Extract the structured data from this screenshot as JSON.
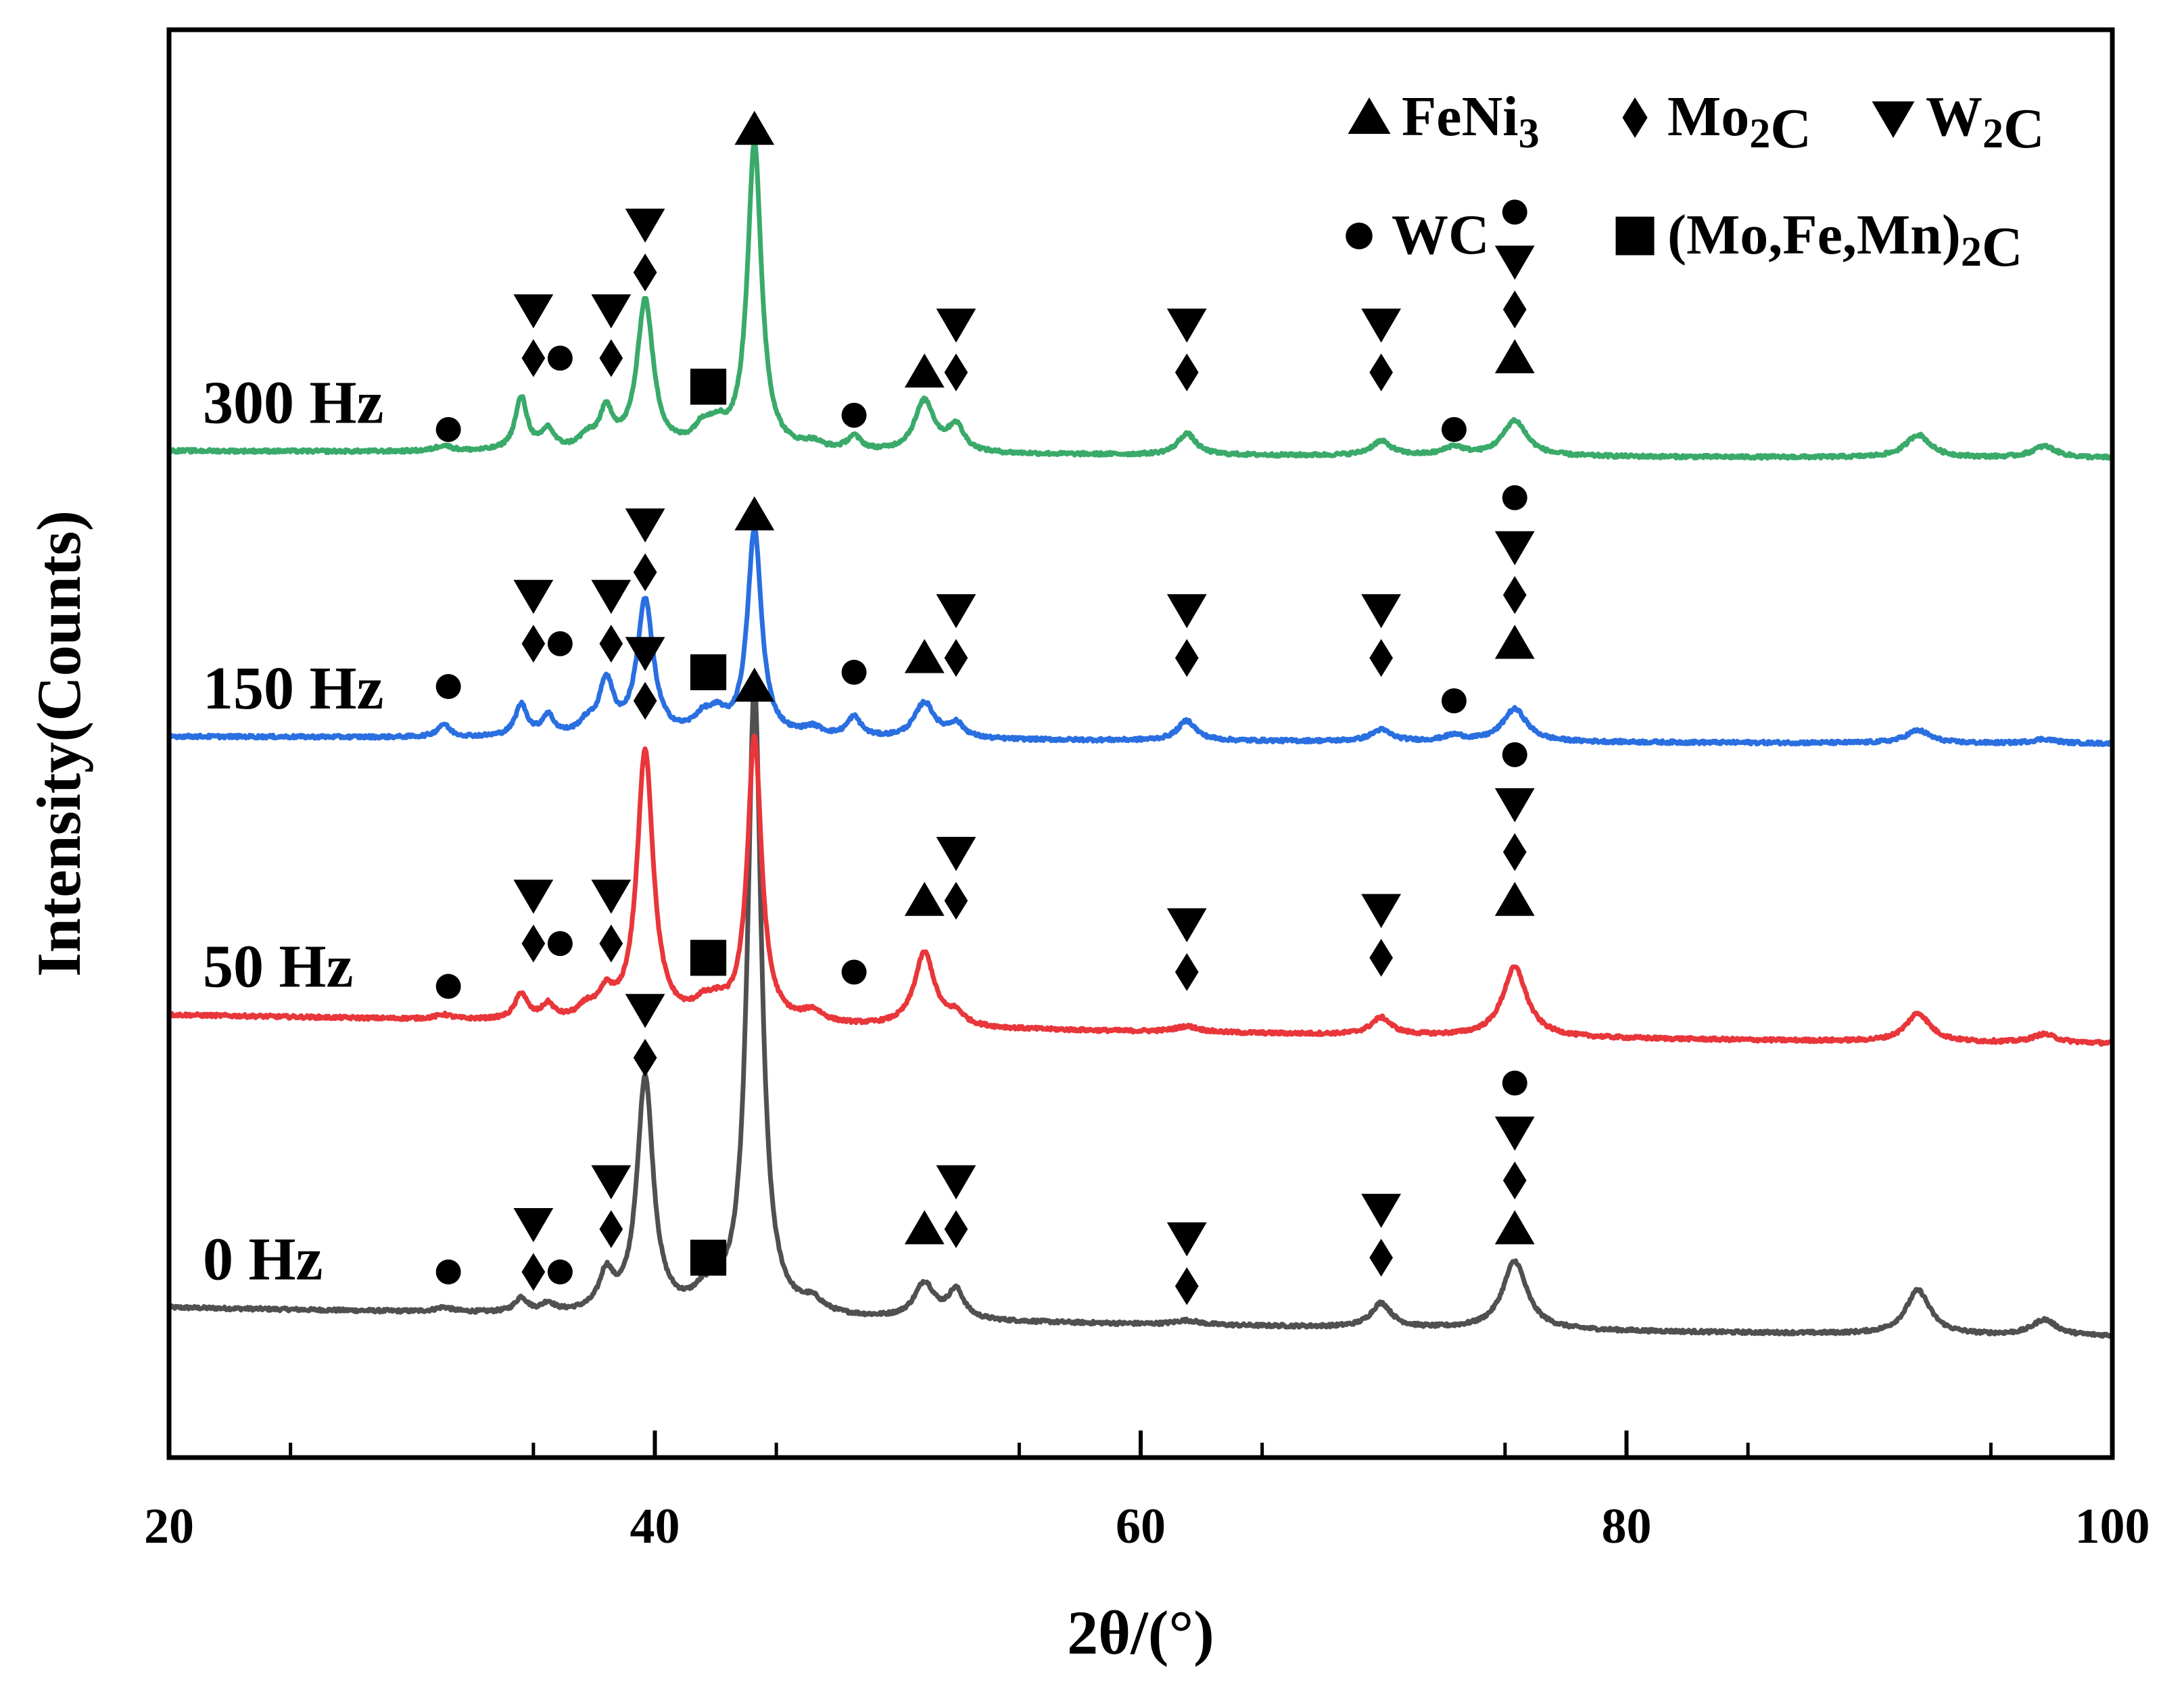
{
  "chart_data": {
    "type": "line",
    "title": "",
    "xlabel": "2θ/(°)",
    "ylabel": "Intensity(Counts)",
    "xlim": [
      20,
      100
    ],
    "x_ticks": [
      20,
      40,
      60,
      80,
      100
    ],
    "x_tick_labels": [
      "20",
      "40",
      "60",
      "80",
      "100"
    ],
    "ylim": [
      0,
      100
    ],
    "grid": false,
    "legend": {
      "position": "top-right",
      "entries": [
        {
          "symbol": "triangle-up",
          "parts": [
            {
              "t": "FeNi"
            },
            {
              "t": "3",
              "sub": true
            }
          ]
        },
        {
          "symbol": "diamond",
          "parts": [
            {
              "t": "Mo"
            },
            {
              "t": "2",
              "sub": true
            },
            {
              "t": "C"
            }
          ]
        },
        {
          "symbol": "triangle-down",
          "parts": [
            {
              "t": "W"
            },
            {
              "t": "2",
              "sub": true
            },
            {
              "t": "C"
            }
          ]
        },
        {
          "symbol": "circle",
          "parts": [
            {
              "t": "WC"
            }
          ]
        },
        {
          "symbol": "square",
          "parts": [
            {
              "t": "(Mo,Fe,Mn)"
            },
            {
              "t": "2",
              "sub": true
            },
            {
              "t": "C"
            }
          ]
        }
      ]
    },
    "series": [
      {
        "name": "0 Hz",
        "color": "#505050",
        "baseline": [
          8.5,
          10.5
        ],
        "peaks": [
          [
            31.3,
            0.3,
            0.4
          ],
          [
            34.5,
            1.0,
            0.3
          ],
          [
            35.6,
            0.6,
            0.3
          ],
          [
            38.0,
            2.5,
            0.35
          ],
          [
            39.6,
            16.5,
            0.4
          ],
          [
            42.0,
            1.0,
            0.5
          ],
          [
            42.6,
            0.8,
            0.4
          ],
          [
            44.1,
            44.0,
            0.35
          ],
          [
            46.5,
            0.8,
            0.5
          ],
          [
            51.1,
            2.5,
            0.5
          ],
          [
            52.4,
            2.0,
            0.4
          ],
          [
            61.9,
            0.3,
            0.6
          ],
          [
            69.9,
            1.7,
            0.5
          ],
          [
            75.4,
            4.8,
            0.6
          ],
          [
            92.0,
            3.1,
            0.6
          ],
          [
            97.2,
            1.1,
            0.6
          ]
        ],
        "markers": [
          {
            "x": 31.5,
            "y": 13,
            "stack": [
              "circle"
            ]
          },
          {
            "x": 35.0,
            "y": 13,
            "stack": [
              "diamond",
              "triangle-down"
            ]
          },
          {
            "x": 36.1,
            "y": 13,
            "stack": [
              "circle"
            ]
          },
          {
            "x": 38.2,
            "y": 16,
            "stack": [
              "diamond",
              "triangle-down"
            ]
          },
          {
            "x": 39.6,
            "y": 28,
            "stack": [
              "diamond",
              "triangle-down"
            ]
          },
          {
            "x": 42.2,
            "y": 14,
            "stack": [
              "square"
            ]
          },
          {
            "x": 51.1,
            "y": 16,
            "stack": [
              "triangle-up"
            ]
          },
          {
            "x": 52.4,
            "y": 16,
            "stack": [
              "diamond",
              "triangle-down"
            ]
          },
          {
            "x": 61.9,
            "y": 12,
            "stack": [
              "diamond",
              "triangle-down"
            ]
          },
          {
            "x": 69.9,
            "y": 14,
            "stack": [
              "diamond",
              "triangle-down"
            ]
          },
          {
            "x": 75.4,
            "y": 16,
            "stack": [
              "triangle-up",
              "diamond",
              "triangle-down",
              "circle"
            ]
          }
        ]
      },
      {
        "name": "50 Hz",
        "color": "#e8363a",
        "baseline": [
          29.0,
          31.0
        ],
        "peaks": [
          [
            31.3,
            0.3,
            0.4
          ],
          [
            34.5,
            1.8,
            0.3
          ],
          [
            35.6,
            1.0,
            0.3
          ],
          [
            37.2,
            0.8,
            0.4
          ],
          [
            38.0,
            1.6,
            0.35
          ],
          [
            39.6,
            19.0,
            0.4
          ],
          [
            42.0,
            1.0,
            0.5
          ],
          [
            42.6,
            0.8,
            0.4
          ],
          [
            44.1,
            20.0,
            0.35
          ],
          [
            46.5,
            0.8,
            0.5
          ],
          [
            51.1,
            5.2,
            0.5
          ],
          [
            52.4,
            0.8,
            0.4
          ],
          [
            61.9,
            0.4,
            0.6
          ],
          [
            69.9,
            1.2,
            0.5
          ],
          [
            75.4,
            4.9,
            0.6
          ],
          [
            92.0,
            2.0,
            0.6
          ],
          [
            97.2,
            0.6,
            0.6
          ]
        ],
        "markers": [
          {
            "x": 31.5,
            "y": 33,
            "stack": [
              "circle"
            ]
          },
          {
            "x": 35.0,
            "y": 36,
            "stack": [
              "diamond",
              "triangle-down"
            ]
          },
          {
            "x": 36.1,
            "y": 36,
            "stack": [
              "circle"
            ]
          },
          {
            "x": 38.2,
            "y": 36,
            "stack": [
              "diamond",
              "triangle-down"
            ]
          },
          {
            "x": 39.6,
            "y": 53,
            "stack": [
              "diamond",
              "triangle-down"
            ]
          },
          {
            "x": 42.2,
            "y": 35,
            "stack": [
              "square"
            ]
          },
          {
            "x": 44.1,
            "y": 54,
            "stack": [
              "triangle-up"
            ]
          },
          {
            "x": 48.2,
            "y": 34,
            "stack": [
              "circle"
            ]
          },
          {
            "x": 51.1,
            "y": 39,
            "stack": [
              "triangle-up"
            ]
          },
          {
            "x": 52.4,
            "y": 39,
            "stack": [
              "diamond",
              "triangle-down"
            ]
          },
          {
            "x": 61.9,
            "y": 34,
            "stack": [
              "diamond",
              "triangle-down"
            ]
          },
          {
            "x": 69.9,
            "y": 35,
            "stack": [
              "diamond",
              "triangle-down"
            ]
          },
          {
            "x": 75.4,
            "y": 39,
            "stack": [
              "triangle-up",
              "diamond",
              "triangle-down",
              "circle"
            ]
          }
        ]
      },
      {
        "name": "150 Hz",
        "color": "#2a6fe0",
        "baseline": [
          50.0,
          50.5
        ],
        "peaks": [
          [
            31.3,
            0.9,
            0.3
          ],
          [
            34.5,
            2.2,
            0.3
          ],
          [
            35.6,
            1.4,
            0.3
          ],
          [
            37.2,
            0.8,
            0.4
          ],
          [
            38.0,
            3.7,
            0.35
          ],
          [
            39.6,
            9.5,
            0.4
          ],
          [
            42.0,
            1.2,
            0.5
          ],
          [
            42.6,
            1.1,
            0.4
          ],
          [
            44.1,
            14.5,
            0.35
          ],
          [
            46.5,
            0.6,
            0.5
          ],
          [
            48.2,
            1.4,
            0.35
          ],
          [
            51.1,
            2.5,
            0.5
          ],
          [
            52.4,
            1.0,
            0.4
          ],
          [
            61.9,
            1.4,
            0.45
          ],
          [
            69.9,
            0.8,
            0.5
          ],
          [
            72.9,
            0.4,
            0.5
          ],
          [
            75.4,
            2.3,
            0.6
          ],
          [
            92.0,
            0.9,
            0.6
          ],
          [
            97.2,
            0.3,
            0.6
          ]
        ],
        "markers": [
          {
            "x": 31.5,
            "y": 54,
            "stack": [
              "circle"
            ]
          },
          {
            "x": 35.0,
            "y": 57,
            "stack": [
              "diamond",
              "triangle-down"
            ]
          },
          {
            "x": 36.1,
            "y": 57,
            "stack": [
              "circle"
            ]
          },
          {
            "x": 38.2,
            "y": 57,
            "stack": [
              "diamond",
              "triangle-down"
            ]
          },
          {
            "x": 39.6,
            "y": 62,
            "stack": [
              "diamond",
              "triangle-down"
            ]
          },
          {
            "x": 42.2,
            "y": 55,
            "stack": [
              "square"
            ]
          },
          {
            "x": 44.1,
            "y": 66,
            "stack": [
              "triangle-up"
            ]
          },
          {
            "x": 48.2,
            "y": 55,
            "stack": [
              "circle"
            ]
          },
          {
            "x": 51.1,
            "y": 56,
            "stack": [
              "triangle-up"
            ]
          },
          {
            "x": 52.4,
            "y": 56,
            "stack": [
              "diamond",
              "triangle-down"
            ]
          },
          {
            "x": 61.9,
            "y": 56,
            "stack": [
              "diamond",
              "triangle-down"
            ]
          },
          {
            "x": 69.9,
            "y": 56,
            "stack": [
              "diamond",
              "triangle-down"
            ]
          },
          {
            "x": 72.9,
            "y": 53,
            "stack": [
              "circle"
            ]
          },
          {
            "x": 75.4,
            "y": 57,
            "stack": [
              "triangle-up",
              "diamond",
              "triangle-down",
              "circle"
            ]
          }
        ]
      },
      {
        "name": "300 Hz",
        "color": "#3aaa6a",
        "baseline": [
          70.0,
          70.5
        ],
        "peaks": [
          [
            31.3,
            0.4,
            0.4
          ],
          [
            34.5,
            3.7,
            0.3
          ],
          [
            35.6,
            1.4,
            0.3
          ],
          [
            37.2,
            0.8,
            0.4
          ],
          [
            38.0,
            2.6,
            0.35
          ],
          [
            39.6,
            10.5,
            0.4
          ],
          [
            42.0,
            1.4,
            0.5
          ],
          [
            42.6,
            1.1,
            0.4
          ],
          [
            44.1,
            21.5,
            0.35
          ],
          [
            46.5,
            0.5,
            0.5
          ],
          [
            48.2,
            1.0,
            0.35
          ],
          [
            51.1,
            3.6,
            0.5
          ],
          [
            52.4,
            1.8,
            0.4
          ],
          [
            61.9,
            1.5,
            0.45
          ],
          [
            69.9,
            1.0,
            0.5
          ],
          [
            72.9,
            0.6,
            0.5
          ],
          [
            75.4,
            2.5,
            0.6
          ],
          [
            92.0,
            1.6,
            0.6
          ],
          [
            97.2,
            0.8,
            0.6
          ]
        ],
        "markers": [
          {
            "x": 31.5,
            "y": 72,
            "stack": [
              "circle"
            ]
          },
          {
            "x": 35.0,
            "y": 77,
            "stack": [
              "diamond",
              "triangle-down"
            ]
          },
          {
            "x": 36.1,
            "y": 77,
            "stack": [
              "circle"
            ]
          },
          {
            "x": 38.2,
            "y": 77,
            "stack": [
              "diamond",
              "triangle-down"
            ]
          },
          {
            "x": 39.6,
            "y": 83,
            "stack": [
              "diamond",
              "triangle-down"
            ]
          },
          {
            "x": 42.2,
            "y": 75,
            "stack": [
              "square"
            ]
          },
          {
            "x": 44.1,
            "y": 93,
            "stack": [
              "triangle-up"
            ]
          },
          {
            "x": 48.2,
            "y": 73,
            "stack": [
              "circle"
            ]
          },
          {
            "x": 51.1,
            "y": 76,
            "stack": [
              "triangle-up"
            ]
          },
          {
            "x": 52.4,
            "y": 76,
            "stack": [
              "diamond",
              "triangle-down"
            ]
          },
          {
            "x": 61.9,
            "y": 76,
            "stack": [
              "diamond",
              "triangle-down"
            ]
          },
          {
            "x": 69.9,
            "y": 76,
            "stack": [
              "diamond",
              "triangle-down"
            ]
          },
          {
            "x": 72.9,
            "y": 72,
            "stack": [
              "circle"
            ]
          },
          {
            "x": 75.4,
            "y": 77,
            "stack": [
              "triangle-up",
              "diamond",
              "triangle-down",
              "circle"
            ]
          }
        ]
      }
    ]
  }
}
